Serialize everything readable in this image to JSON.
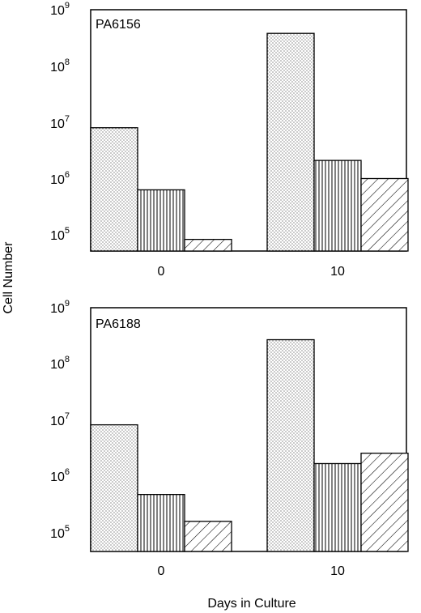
{
  "chart_data": {
    "type": "bar",
    "ylabel": "Cell Number",
    "xlabel": "Days in Culture",
    "yscale": "log",
    "ylim": [
      50000,
      1000000000
    ],
    "y_ticks": [
      {
        "base": "10",
        "exp": "5"
      },
      {
        "base": "10",
        "exp": "6"
      },
      {
        "base": "10",
        "exp": "7"
      },
      {
        "base": "10",
        "exp": "8"
      },
      {
        "base": "10",
        "exp": "9"
      }
    ],
    "categories": [
      "0",
      "10"
    ],
    "panels": [
      {
        "label": "PA6156",
        "series": [
          {
            "pattern": "dots",
            "values": [
              8000000,
              380000000
            ]
          },
          {
            "pattern": "vertical-lines",
            "values": [
              630000,
              2100000
            ]
          },
          {
            "pattern": "diagonal-lines",
            "values": [
              83000,
              1000000
            ]
          }
        ]
      },
      {
        "label": "PA6188",
        "series": [
          {
            "pattern": "dots",
            "values": [
              8300000,
              270000000
            ]
          },
          {
            "pattern": "vertical-lines",
            "values": [
              480000,
              1700000
            ]
          },
          {
            "pattern": "diagonal-lines",
            "values": [
              160000,
              2600000
            ]
          }
        ]
      }
    ],
    "grid": false,
    "legend": "none"
  }
}
